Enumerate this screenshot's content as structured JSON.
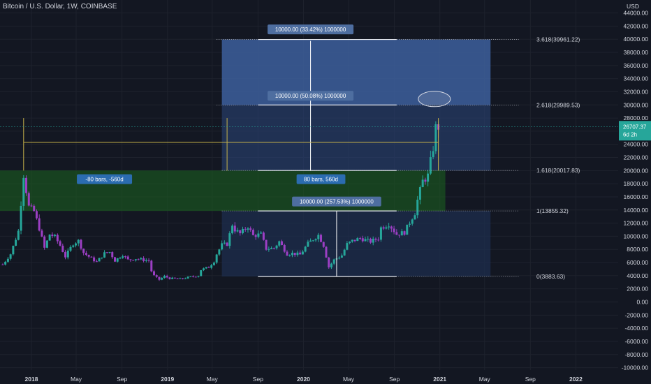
{
  "header": {
    "title": "Bitcoin / U.S. Dollar, 1W, COINBASE"
  },
  "axis": {
    "currency": "USD"
  },
  "price_tag": {
    "value": "26707.37",
    "countdown": "6d 2h",
    "peek": "26"
  },
  "colors": {
    "background": "#131722",
    "grid": "#1e222d",
    "bull": "#26a69a",
    "bear": "#9c3fc4",
    "price_tag": "#26a69a",
    "projection_upper": "#3d5f9c",
    "projection_lower": "#1e2e4e",
    "green_zone": "#1b5e20",
    "label_blue": "#2b6cb0",
    "label_steel": "#4e6ea0",
    "bars_line": "#c8b34a"
  },
  "chart_data": {
    "type": "candlestick",
    "title": "Bitcoin / U.S. Dollar, 1W, COINBASE",
    "y_axis": {
      "min": -10000,
      "max": 44000,
      "unit": "USD",
      "ticks": [
        44000,
        42000,
        40000,
        38000,
        36000,
        34000,
        32000,
        30000,
        28000,
        26000,
        24000,
        22000,
        20000,
        18000,
        16000,
        14000,
        12000,
        10000,
        8000,
        6000,
        4000,
        2000,
        0,
        -2000,
        -4000,
        -6000,
        -8000,
        -10000
      ],
      "tick_labels": [
        "44000.00",
        "42000.00",
        "40000.00",
        "38000.00",
        "36000.00",
        "34000.00",
        "32000.00",
        "30000.00",
        "28000.00",
        "26000.00",
        "24000.00",
        "22000.00",
        "20000.00",
        "18000.00",
        "16000.00",
        "14000.00",
        "12000.00",
        "10000.00",
        "8000.00",
        "6000.00",
        "4000.00",
        "2000.00",
        "0.00",
        "-2000.00",
        "-4000.00",
        "-6000.00",
        "-8000.00",
        "-10000.00"
      ]
    },
    "x_axis": {
      "labels": [
        "2018",
        "May",
        "Sep",
        "2019",
        "May",
        "Sep",
        "2020",
        "May",
        "Sep",
        "2021",
        "May",
        "Sep",
        "2022"
      ],
      "dates": [
        "2018-01-01",
        "2018-05-01",
        "2018-09-01",
        "2019-01-01",
        "2019-05-01",
        "2019-09-01",
        "2020-01-01",
        "2020-05-01",
        "2020-09-01",
        "2021-01-01",
        "2021-05-01",
        "2021-09-01",
        "2022-01-01"
      ],
      "bold": [
        "2018",
        "2019",
        "2020",
        "2021",
        "2022"
      ]
    },
    "price_points": [
      [
        "2017-10-16",
        5700
      ],
      [
        "2017-11-06",
        7300
      ],
      [
        "2017-11-27",
        10800
      ],
      [
        "2017-12-11",
        19400
      ],
      [
        "2017-12-25",
        14500
      ],
      [
        "2018-01-08",
        13800
      ],
      [
        "2018-01-22",
        11200
      ],
      [
        "2018-02-05",
        8200
      ],
      [
        "2018-02-19",
        10300
      ],
      [
        "2018-03-05",
        9900
      ],
      [
        "2018-03-19",
        8600
      ],
      [
        "2018-04-02",
        6900
      ],
      [
        "2018-04-23",
        8900
      ],
      [
        "2018-05-07",
        9300
      ],
      [
        "2018-05-21",
        7500
      ],
      [
        "2018-06-11",
        6600
      ],
      [
        "2018-06-25",
        6100
      ],
      [
        "2018-07-16",
        7400
      ],
      [
        "2018-07-30",
        7600
      ],
      [
        "2018-08-13",
        6300
      ],
      [
        "2018-09-03",
        7200
      ],
      [
        "2018-09-17",
        6400
      ],
      [
        "2018-10-08",
        6600
      ],
      [
        "2018-10-29",
        6400
      ],
      [
        "2018-11-12",
        6300
      ],
      [
        "2018-11-19",
        4700
      ],
      [
        "2018-11-26",
        4000
      ],
      [
        "2018-12-10",
        3400
      ],
      [
        "2018-12-24",
        3900
      ],
      [
        "2019-01-07",
        3600
      ],
      [
        "2019-02-04",
        3500
      ],
      [
        "2019-03-04",
        3800
      ],
      [
        "2019-03-25",
        4000
      ],
      [
        "2019-04-01",
        4900
      ],
      [
        "2019-04-22",
        5300
      ],
      [
        "2019-05-06",
        6200
      ],
      [
        "2019-05-13",
        7300
      ],
      [
        "2019-05-27",
        8700
      ],
      [
        "2019-06-10",
        8800
      ],
      [
        "2019-06-24",
        11800
      ],
      [
        "2019-07-01",
        11000
      ],
      [
        "2019-07-15",
        10400
      ],
      [
        "2019-08-05",
        11500
      ],
      [
        "2019-08-19",
        10100
      ],
      [
        "2019-09-09",
        10300
      ],
      [
        "2019-09-23",
        8100
      ],
      [
        "2019-10-14",
        8200
      ],
      [
        "2019-10-28",
        9200
      ],
      [
        "2019-11-18",
        7300
      ],
      [
        "2019-12-02",
        7400
      ],
      [
        "2019-12-23",
        7200
      ],
      [
        "2020-01-13",
        8900
      ],
      [
        "2020-02-10",
        10200
      ],
      [
        "2020-02-24",
        8600
      ],
      [
        "2020-03-09",
        5300
      ],
      [
        "2020-03-23",
        6400
      ],
      [
        "2020-04-13",
        7100
      ],
      [
        "2020-04-27",
        8800
      ],
      [
        "2020-05-11",
        9300
      ],
      [
        "2020-06-01",
        9700
      ],
      [
        "2020-06-29",
        9200
      ],
      [
        "2020-07-20",
        9700
      ],
      [
        "2020-07-27",
        11300
      ],
      [
        "2020-08-17",
        11900
      ],
      [
        "2020-09-07",
        10300
      ],
      [
        "2020-09-28",
        10600
      ],
      [
        "2020-10-19",
        12900
      ],
      [
        "2020-10-26",
        13600
      ],
      [
        "2020-11-02",
        15500
      ],
      [
        "2020-11-16",
        18400
      ],
      [
        "2020-11-30",
        19200
      ],
      [
        "2020-12-14",
        23500
      ],
      [
        "2020-12-21",
        26500
      ],
      [
        "2020-12-28",
        26700
      ]
    ]
  },
  "annotations": {
    "fib_levels": [
      {
        "price": 39961.22,
        "label": "3.618(39961.22)"
      },
      {
        "price": 29989.53,
        "label": "2.618(29989.53)"
      },
      {
        "price": 20017.83,
        "label": "1.618(20017.83)"
      },
      {
        "price": 13855.32,
        "label": "1(13855.32)"
      },
      {
        "price": 3883.63,
        "label": "0(3883.63)"
      }
    ],
    "measure_labels": [
      {
        "text": "10000.00 (33.42%) 1000000",
        "price": 41500
      },
      {
        "text": "10000.00 (50.08%) 1000000",
        "price": 31400
      },
      {
        "text": "10000.00 (257.53%) 1000000",
        "price": 15300
      }
    ],
    "bar_labels": [
      {
        "text": "-80 bars, -560d",
        "price": 18700
      },
      {
        "text": "80 bars, 560d",
        "price": 18700
      }
    ]
  }
}
